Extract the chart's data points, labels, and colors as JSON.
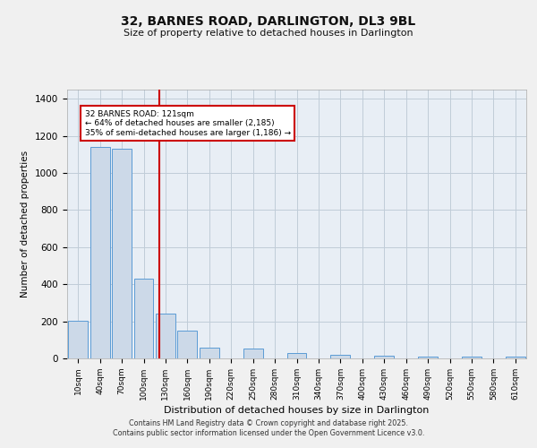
{
  "title": "32, BARNES ROAD, DARLINGTON, DL3 9BL",
  "subtitle": "Size of property relative to detached houses in Darlington",
  "xlabel": "Distribution of detached houses by size in Darlington",
  "ylabel": "Number of detached properties",
  "bar_labels": [
    "10sqm",
    "40sqm",
    "70sqm",
    "100sqm",
    "130sqm",
    "160sqm",
    "190sqm",
    "220sqm",
    "250sqm",
    "280sqm",
    "310sqm",
    "340sqm",
    "370sqm",
    "400sqm",
    "430sqm",
    "460sqm",
    "490sqm",
    "520sqm",
    "550sqm",
    "580sqm",
    "610sqm"
  ],
  "bar_values": [
    205,
    1140,
    1130,
    430,
    240,
    150,
    60,
    0,
    55,
    0,
    30,
    0,
    20,
    0,
    15,
    0,
    10,
    0,
    8,
    0,
    8
  ],
  "bar_color": "#ccd9e8",
  "bar_edge_color": "#5b9bd5",
  "grid_color": "#c0ccd8",
  "background_color": "#e8eef5",
  "vline_x": 3.7,
  "vline_color": "#cc0000",
  "annotation_text": "32 BARNES ROAD: 121sqm\n← 64% of detached houses are smaller (2,185)\n35% of semi-detached houses are larger (1,186) →",
  "annotation_box_color": "#ffffff",
  "annotation_box_edge": "#cc0000",
  "ylim": [
    0,
    1450
  ],
  "yticks": [
    0,
    200,
    400,
    600,
    800,
    1000,
    1200,
    1400
  ],
  "footer_line1": "Contains HM Land Registry data © Crown copyright and database right 2025.",
  "footer_line2": "Contains public sector information licensed under the Open Government Licence v3.0."
}
